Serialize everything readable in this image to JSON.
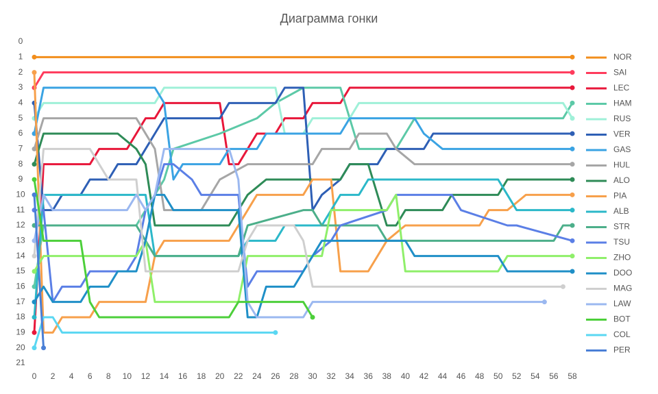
{
  "chart_data": {
    "type": "line",
    "title": "Диаграмма гонки",
    "xlim": [
      0,
      58
    ],
    "xticks": [
      0,
      2,
      4,
      6,
      8,
      10,
      12,
      14,
      16,
      18,
      20,
      22,
      24,
      26,
      28,
      30,
      32,
      34,
      36,
      38,
      40,
      42,
      44,
      46,
      48,
      50,
      52,
      54,
      56,
      58
    ],
    "ylim": [
      0,
      21
    ],
    "yticks": [
      0,
      1,
      2,
      3,
      4,
      5,
      6,
      7,
      8,
      9,
      10,
      11,
      12,
      13,
      14,
      15,
      16,
      17,
      18,
      19,
      20,
      21
    ],
    "y_reversed": true,
    "legend": "right",
    "series": [
      {
        "name": "NOR",
        "color": "#f28e1c",
        "x": [
          0,
          58
        ],
        "values": [
          1,
          1
        ]
      },
      {
        "name": "SAI",
        "color": "#ff3b5c",
        "x": [
          0,
          1,
          58
        ],
        "values": [
          3,
          2,
          2
        ]
      },
      {
        "name": "LEC",
        "color": "#e8173a",
        "x": [
          0,
          1,
          6,
          7,
          10,
          11,
          12,
          13,
          14,
          20,
          21,
          22,
          23,
          24,
          26,
          27,
          29,
          30,
          33,
          34,
          58
        ],
        "values": [
          19,
          8,
          8,
          7,
          7,
          6,
          5,
          5,
          4,
          4,
          8,
          8,
          7,
          6,
          6,
          5,
          5,
          4,
          4,
          3,
          3
        ]
      },
      {
        "name": "HAM",
        "color": "#5cc9a7",
        "x": [
          0,
          1,
          11,
          12,
          14,
          15,
          20,
          24,
          26,
          29,
          33,
          34,
          35,
          39,
          40,
          41,
          57,
          58
        ],
        "values": [
          16,
          12,
          12,
          11,
          9,
          7,
          6,
          5,
          4,
          3,
          3,
          5,
          7,
          7,
          6,
          5,
          5,
          4
        ]
      },
      {
        "name": "RUS",
        "color": "#9ff0d8",
        "x": [
          0,
          1,
          13,
          14,
          26,
          27,
          29,
          30,
          34,
          35,
          57,
          58
        ],
        "values": [
          5,
          4,
          4,
          3,
          3,
          6,
          6,
          5,
          5,
          4,
          4,
          5
        ]
      },
      {
        "name": "VER",
        "color": "#2e5fb5",
        "x": [
          0,
          1,
          2,
          3,
          5,
          6,
          8,
          9,
          11,
          12,
          13,
          14,
          20,
          21,
          26,
          27,
          29,
          30,
          31,
          33,
          34,
          37,
          38,
          42,
          43,
          58
        ],
        "values": [
          4,
          11,
          11,
          10,
          10,
          9,
          9,
          8,
          8,
          7,
          6,
          5,
          5,
          4,
          4,
          3,
          3,
          11,
          10,
          9,
          8,
          8,
          7,
          7,
          6,
          6
        ]
      },
      {
        "name": "GAS",
        "color": "#3aa3e3",
        "x": [
          0,
          1,
          13,
          14,
          15,
          16,
          20,
          21,
          24,
          25,
          33,
          34,
          41,
          42,
          44,
          58
        ],
        "values": [
          6,
          3,
          3,
          4,
          9,
          8,
          8,
          7,
          7,
          6,
          6,
          5,
          5,
          6,
          7,
          7
        ]
      },
      {
        "name": "HUL",
        "color": "#a6a6a6",
        "x": [
          0,
          1,
          11,
          13,
          14,
          18,
          19,
          20,
          23,
          30,
          31,
          34,
          35,
          38,
          39,
          41,
          58
        ],
        "values": [
          7,
          5,
          5,
          7,
          11,
          11,
          10,
          9,
          8,
          8,
          7,
          7,
          6,
          6,
          7,
          8,
          8
        ]
      },
      {
        "name": "ALO",
        "color": "#2e8b57",
        "x": [
          0,
          1,
          9,
          11,
          12,
          13,
          21,
          22,
          23,
          25,
          33,
          34,
          36,
          38,
          39,
          40,
          44,
          45,
          50,
          51,
          58
        ],
        "values": [
          8,
          6,
          6,
          7,
          8,
          12,
          12,
          11,
          10,
          9,
          9,
          8,
          8,
          12,
          12,
          11,
          11,
          10,
          10,
          9,
          9
        ]
      },
      {
        "name": "PIA",
        "color": "#f7a04b",
        "x": [
          0,
          1,
          2,
          3,
          6,
          7,
          12,
          13,
          14,
          21,
          22,
          23,
          24,
          29,
          30,
          32,
          33,
          36,
          37,
          38,
          40,
          48,
          49,
          51,
          53,
          58
        ],
        "values": [
          2,
          19,
          19,
          18,
          18,
          17,
          17,
          14,
          13,
          13,
          12,
          11,
          10,
          10,
          9,
          9,
          15,
          15,
          14,
          13,
          12,
          12,
          11,
          11,
          10,
          10
        ]
      },
      {
        "name": "ALB",
        "color": "#2bb8c9",
        "x": [
          0,
          1,
          12,
          13,
          22,
          23,
          26,
          27,
          31,
          32,
          33,
          35,
          36,
          50,
          51,
          52,
          58
        ],
        "values": [
          18,
          10,
          10,
          14,
          14,
          13,
          13,
          12,
          12,
          11,
          10,
          10,
          9,
          9,
          10,
          11,
          11
        ]
      },
      {
        "name": "STR",
        "color": "#4caf8a",
        "x": [
          0,
          1,
          11,
          12,
          13,
          22,
          23,
          29,
          30,
          31,
          37,
          38,
          56,
          57,
          58
        ],
        "values": [
          12,
          12,
          12,
          13,
          14,
          14,
          12,
          11,
          11,
          12,
          12,
          13,
          13,
          12,
          12
        ]
      },
      {
        "name": "TSU",
        "color": "#5b7fe6",
        "x": [
          0,
          1,
          2,
          3,
          5,
          6,
          10,
          11,
          12,
          13,
          14,
          15,
          17,
          18,
          22,
          23,
          24,
          29,
          30,
          32,
          33,
          38,
          39,
          45,
          46,
          51,
          52,
          58
        ],
        "values": [
          11,
          11,
          17,
          16,
          16,
          15,
          15,
          14,
          11,
          10,
          8,
          8,
          9,
          10,
          10,
          16,
          15,
          15,
          14,
          13,
          12,
          11,
          10,
          10,
          11,
          12,
          12,
          13
        ]
      },
      {
        "name": "ZHO",
        "color": "#8fef6a",
        "x": [
          0,
          1,
          11,
          12,
          13,
          22,
          23,
          31,
          32,
          38,
          39,
          40,
          50,
          51,
          58
        ],
        "values": [
          15,
          14,
          14,
          13,
          17,
          17,
          14,
          14,
          11,
          11,
          10,
          15,
          15,
          14,
          14
        ]
      },
      {
        "name": "DOO",
        "color": "#1f8fc7",
        "x": [
          0,
          1,
          2,
          5,
          6,
          8,
          9,
          11,
          12,
          13,
          14,
          15,
          22,
          23,
          24,
          25,
          28,
          29,
          31,
          40,
          41,
          50,
          51,
          58
        ],
        "values": [
          17,
          16,
          17,
          17,
          16,
          16,
          15,
          15,
          13,
          10,
          10,
          11,
          11,
          18,
          18,
          16,
          16,
          15,
          13,
          13,
          14,
          14,
          15,
          15
        ]
      },
      {
        "name": "MAG",
        "color": "#cfcfcf",
        "x": [
          0,
          1,
          6,
          7,
          8,
          11,
          12,
          22,
          23,
          24,
          28,
          29,
          30,
          57
        ],
        "values": [
          14,
          7,
          7,
          8,
          9,
          9,
          15,
          15,
          13,
          12,
          12,
          13,
          16,
          16
        ]
      },
      {
        "name": "LAW",
        "color": "#9bb8f0",
        "x": [
          0,
          1,
          2,
          10,
          11,
          12,
          13,
          14,
          21,
          22,
          23,
          24,
          29,
          30,
          55
        ],
        "values": [
          13,
          10,
          11,
          11,
          10,
          11,
          10,
          7,
          7,
          9,
          17,
          18,
          18,
          17,
          17
        ]
      },
      {
        "name": "BOT",
        "color": "#4ccf3a",
        "x": [
          0,
          1,
          5,
          6,
          7,
          21,
          22,
          29,
          30
        ],
        "values": [
          9,
          13,
          13,
          17,
          18,
          18,
          17,
          17,
          18
        ]
      },
      {
        "name": "COL",
        "color": "#5ad7f2",
        "x": [
          0,
          1,
          2,
          3,
          26
        ],
        "values": [
          20,
          18,
          18,
          19,
          19
        ]
      },
      {
        "name": "PER",
        "color": "#4a7fd6",
        "x": [
          0,
          1
        ],
        "values": [
          10,
          20
        ]
      }
    ]
  }
}
